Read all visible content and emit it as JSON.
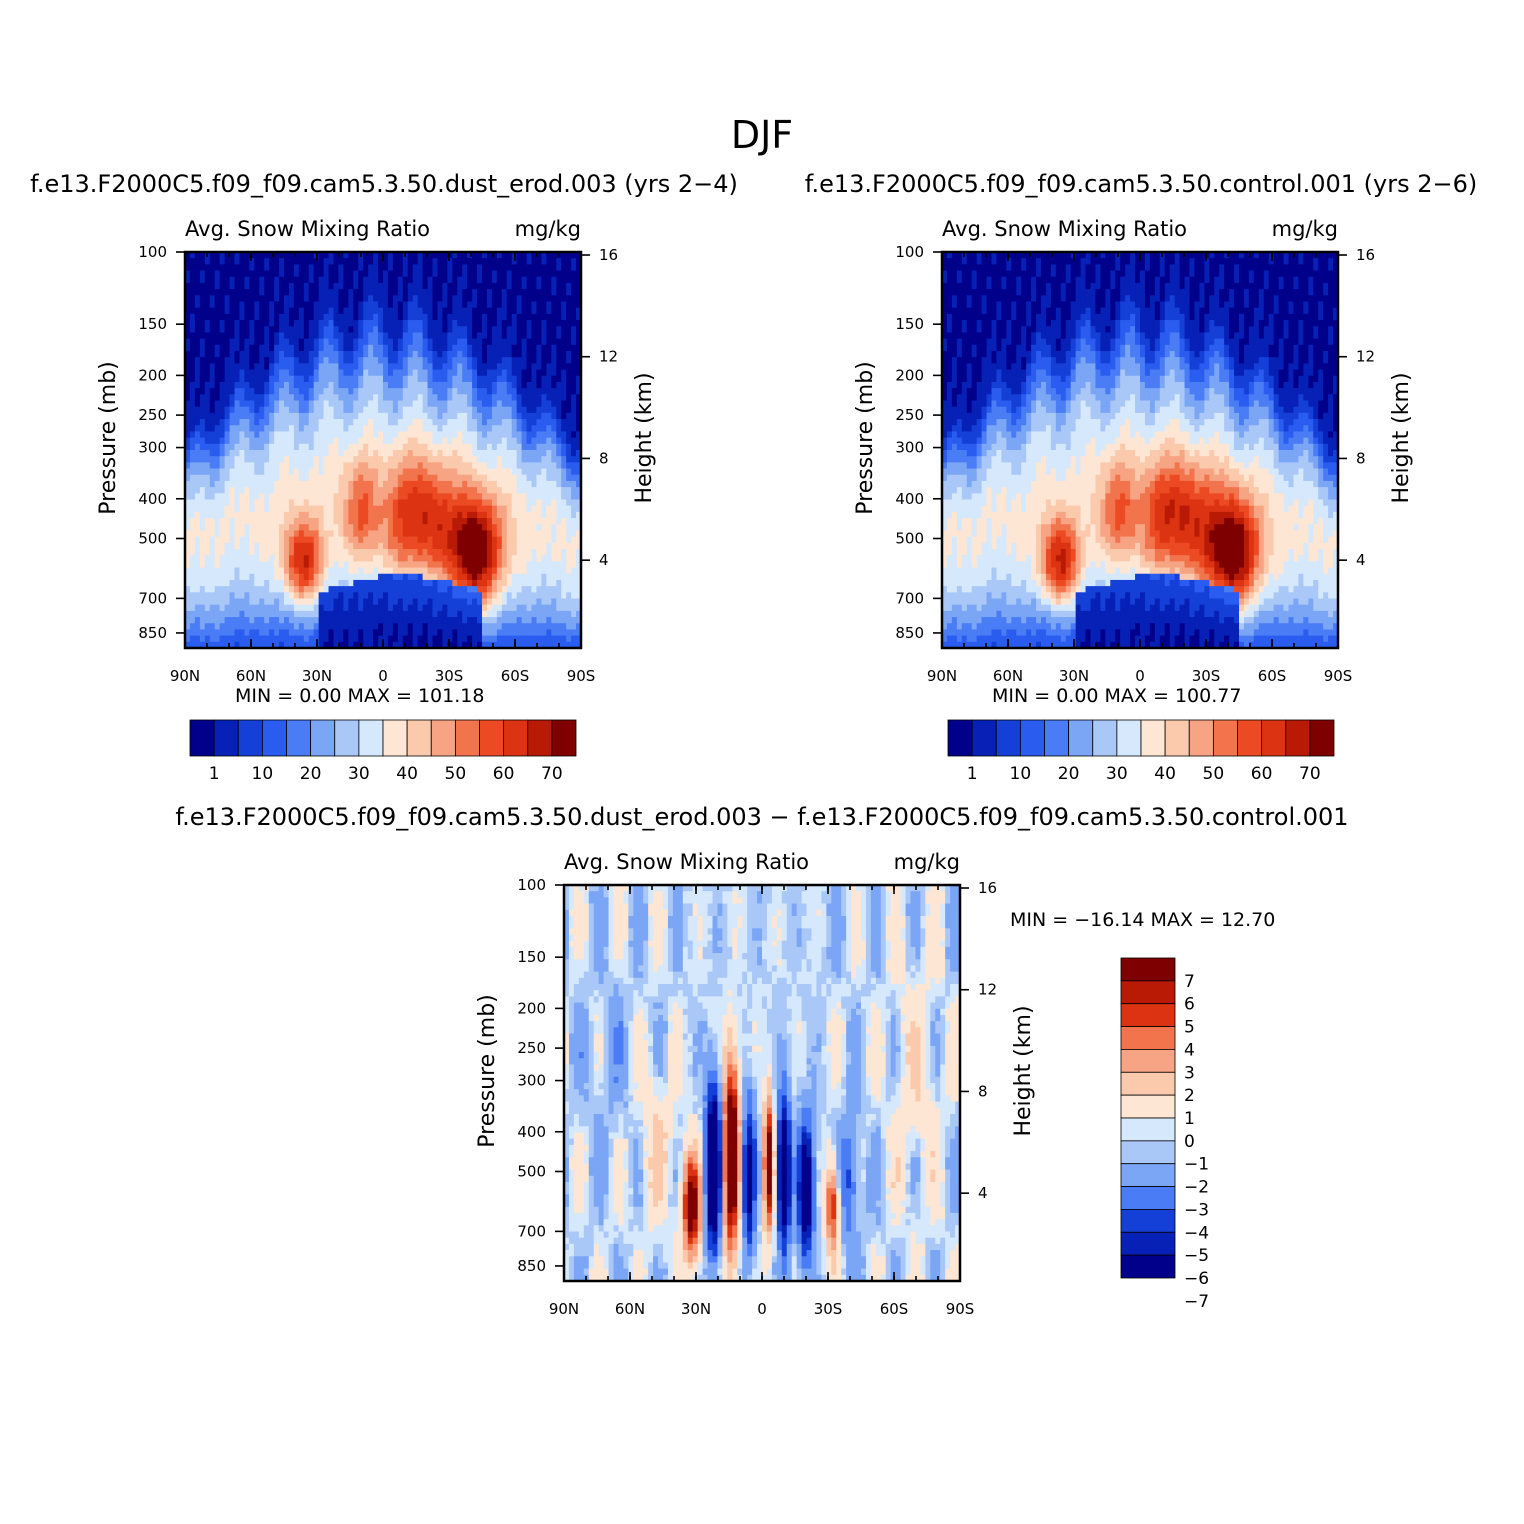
{
  "page_title": "DJF",
  "colors": {
    "seq": [
      "#00008b",
      "#0720b5",
      "#1540d8",
      "#2a5cf0",
      "#4a7cf5",
      "#7ba5f5",
      "#aac8f7",
      "#d6e8fb",
      "#fde6d4",
      "#fbc9ac",
      "#f6a483",
      "#f2744d",
      "#ec4a22",
      "#dc3412",
      "#b81a06",
      "#7f0000"
    ],
    "diff": [
      "#7f0000",
      "#b81a06",
      "#dc3412",
      "#f2744d",
      "#f6a483",
      "#fbc9ac",
      "#fde6d4",
      "#d6e8fb",
      "#aac8f7",
      "#7ba5f5",
      "#4a7cf5",
      "#1540d8",
      "#0720b5",
      "#00008b"
    ]
  },
  "panels": [
    {
      "title": "f.e13.F2000C5.f09_f09.cam5.3.50.dust_erod.003 (yrs 2−4)",
      "left_label": "Avg. Snow Mixing Ratio",
      "right_label": "mg/kg",
      "y_label": "Pressure (mb)",
      "y2_label": "Height (km)",
      "stats": "MIN =     0.00   MAX =  101.18",
      "colorbar_labels": [
        "1",
        "10",
        "20",
        "30",
        "40",
        "50",
        "60",
        "70"
      ]
    },
    {
      "title": "f.e13.F2000C5.f09_f09.cam5.3.50.control.001 (yrs 2−6)",
      "left_label": "Avg. Snow Mixing Ratio",
      "right_label": "mg/kg",
      "y_label": "Pressure (mb)",
      "y2_label": "Height (km)",
      "stats": "MIN =     0.00   MAX =  100.77",
      "colorbar_labels": [
        "1",
        "10",
        "20",
        "30",
        "40",
        "50",
        "60",
        "70"
      ]
    },
    {
      "title": "f.e13.F2000C5.f09_f09.cam5.3.50.dust_erod.003 − f.e13.F2000C5.f09_f09.cam5.3.50.control.001",
      "left_label": "Avg. Snow Mixing Ratio",
      "right_label": "mg/kg",
      "y_label": "Pressure (mb)",
      "y2_label": "Height (km)",
      "stats": "MIN = −16.14   MAX =   12.70",
      "colorbar_labels": [
        "7",
        "6",
        "5",
        "4",
        "3",
        "2",
        "1",
        "0",
        "−1",
        "−2",
        "−3",
        "−4",
        "−5",
        "−6",
        "−7"
      ]
    }
  ],
  "chart_data": [
    {
      "type": "heatmap",
      "title": "f.e13.F2000C5.f09_f09.cam5.3.50.dust_erod.003 (yrs 2−4)",
      "xlabel": "",
      "ylabel": "Pressure (mb)",
      "y2label": "Height (km)",
      "x_ticks": [
        "90N",
        "60N",
        "30N",
        "0",
        "30S",
        "60S",
        "90S"
      ],
      "xlim": [
        90,
        -90
      ],
      "y_ticks": [
        100,
        150,
        200,
        250,
        300,
        400,
        500,
        700,
        850
      ],
      "y2_ticks": [
        16,
        12,
        8,
        4
      ],
      "ylim": [
        100,
        925
      ],
      "y_scale": "log",
      "units": "mg/kg",
      "levels": [
        1,
        5,
        10,
        15,
        20,
        25,
        30,
        35,
        40,
        45,
        50,
        55,
        60,
        65,
        70
      ],
      "min": 0.0,
      "max": 101.18
    },
    {
      "type": "heatmap",
      "title": "f.e13.F2000C5.f09_f09.cam5.3.50.control.001 (yrs 2−6)",
      "xlabel": "",
      "ylabel": "Pressure (mb)",
      "y2label": "Height (km)",
      "x_ticks": [
        "90N",
        "60N",
        "30N",
        "0",
        "30S",
        "60S",
        "90S"
      ],
      "xlim": [
        90,
        -90
      ],
      "y_ticks": [
        100,
        150,
        200,
        250,
        300,
        400,
        500,
        700,
        850
      ],
      "y2_ticks": [
        16,
        12,
        8,
        4
      ],
      "ylim": [
        100,
        925
      ],
      "y_scale": "log",
      "units": "mg/kg",
      "levels": [
        1,
        5,
        10,
        15,
        20,
        25,
        30,
        35,
        40,
        45,
        50,
        55,
        60,
        65,
        70
      ],
      "min": 0.0,
      "max": 100.77
    },
    {
      "type": "heatmap",
      "title": "f.e13.F2000C5.f09_f09.cam5.3.50.dust_erod.003 − f.e13.F2000C5.f09_f09.cam5.3.50.control.001",
      "xlabel": "",
      "ylabel": "Pressure (mb)",
      "y2label": "Height (km)",
      "x_ticks": [
        "90N",
        "60N",
        "30N",
        "0",
        "30S",
        "60S",
        "90S"
      ],
      "xlim": [
        90,
        -90
      ],
      "y_ticks": [
        100,
        150,
        200,
        250,
        300,
        400,
        500,
        700,
        850
      ],
      "y2_ticks": [
        16,
        12,
        8,
        4
      ],
      "ylim": [
        100,
        925
      ],
      "y_scale": "log",
      "units": "mg/kg",
      "levels": [
        7,
        6,
        5,
        4,
        3,
        2,
        1,
        0,
        -1,
        -2,
        -3,
        -4,
        -5,
        -6,
        -7
      ],
      "min": -16.14,
      "max": 12.7
    }
  ]
}
